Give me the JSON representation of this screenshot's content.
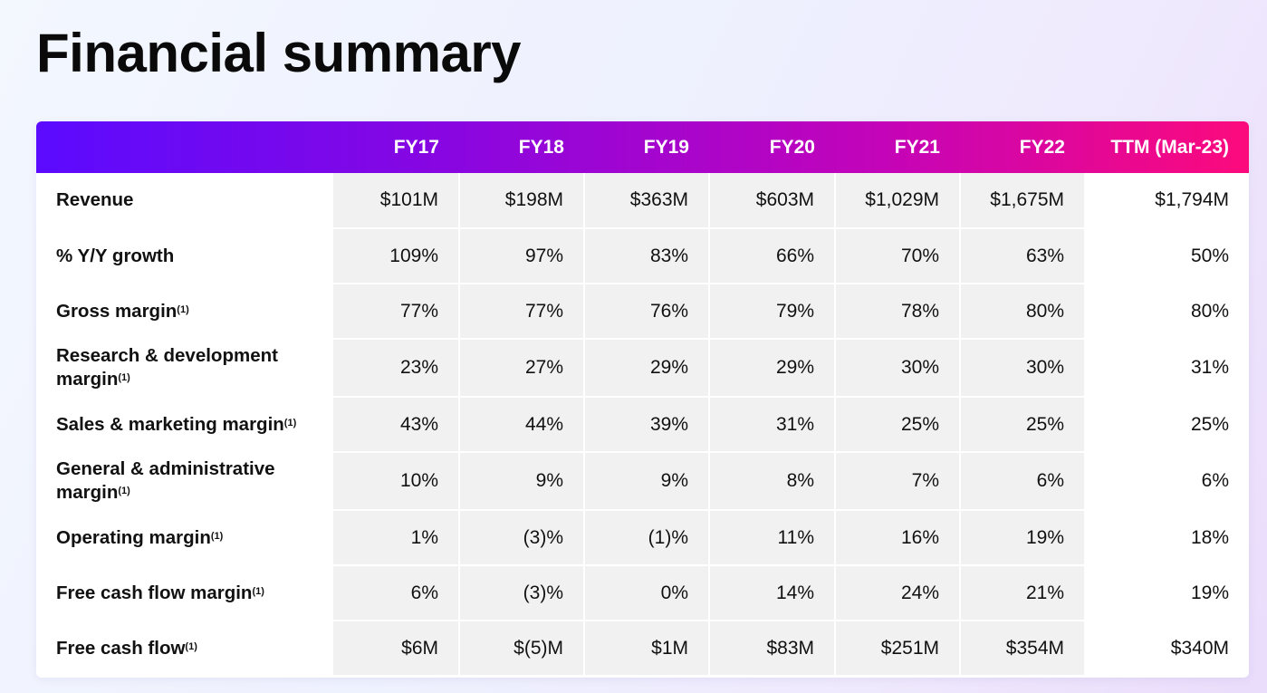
{
  "title": "Financial summary",
  "columns": [
    "",
    "FY17",
    "FY18",
    "FY19",
    "FY20",
    "FY21",
    "FY22",
    "TTM (Mar-23)"
  ],
  "rows": [
    {
      "label": "Revenue",
      "note": "",
      "values": [
        "$101M",
        "$198M",
        "$363M",
        "$603M",
        "$1,029M",
        "$1,675M",
        "$1,794M"
      ]
    },
    {
      "label": "% Y/Y growth",
      "note": "",
      "values": [
        "109%",
        "97%",
        "83%",
        "66%",
        "70%",
        "63%",
        "50%"
      ]
    },
    {
      "label": "Gross margin",
      "note": "(1)",
      "values": [
        "77%",
        "77%",
        "76%",
        "79%",
        "78%",
        "80%",
        "80%"
      ]
    },
    {
      "label": "Research & development margin",
      "note": "(1)",
      "values": [
        "23%",
        "27%",
        "29%",
        "29%",
        "30%",
        "30%",
        "31%"
      ]
    },
    {
      "label": "Sales & marketing margin",
      "note": "(1)",
      "values": [
        "43%",
        "44%",
        "39%",
        "31%",
        "25%",
        "25%",
        "25%"
      ]
    },
    {
      "label": "General & administrative margin",
      "note": "(1)",
      "values": [
        "10%",
        "9%",
        "9%",
        "8%",
        "7%",
        "6%",
        "6%"
      ]
    },
    {
      "label": "Operating margin",
      "note": "(1)",
      "values": [
        "1%",
        "(3)%",
        "(1)%",
        "11%",
        "16%",
        "19%",
        "18%"
      ]
    },
    {
      "label": "Free cash flow margin",
      "note": "(1)",
      "values": [
        "6%",
        "(3)%",
        "0%",
        "14%",
        "24%",
        "21%",
        "19%"
      ]
    },
    {
      "label": "Free cash flow",
      "note": "(1)",
      "values": [
        "$6M",
        "$(5)M",
        "$1M",
        "$83M",
        "$251M",
        "$354M",
        "$340M"
      ]
    }
  ]
}
